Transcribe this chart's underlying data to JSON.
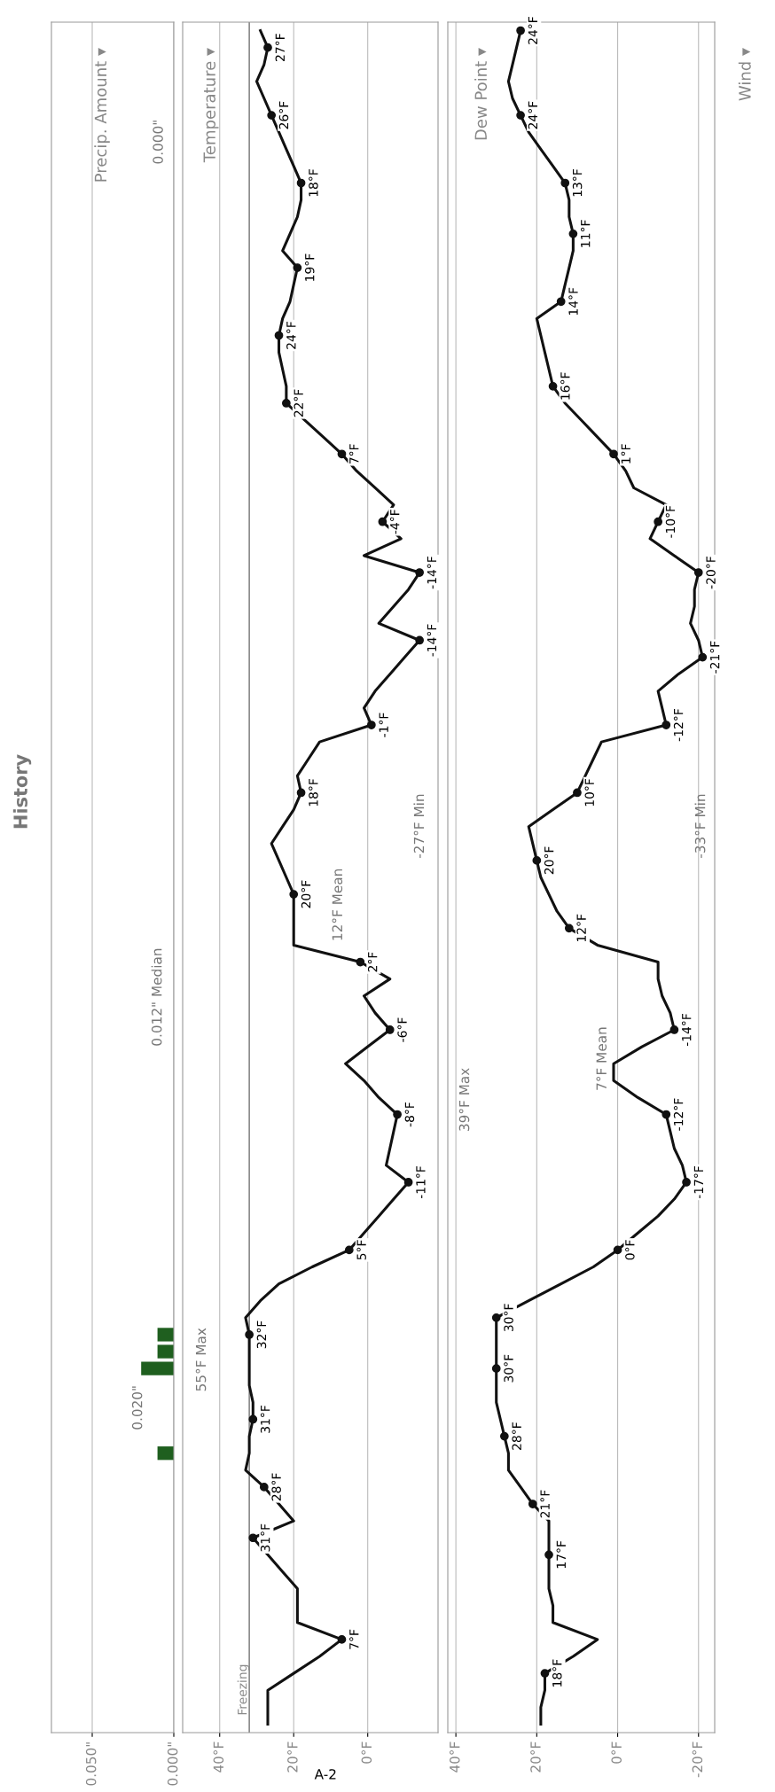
{
  "chart_data": [
    {
      "type": "other",
      "title": "History"
    },
    {
      "type": "bar",
      "title": "Precip. Amount ▾",
      "orientation": "horizontal",
      "categories": [
        null,
        null,
        null,
        null,
        null,
        null,
        null,
        null,
        null,
        null,
        null,
        null,
        null,
        null,
        null,
        null,
        null,
        null,
        null,
        null,
        null,
        null,
        null,
        null,
        null,
        null,
        null,
        null,
        null,
        null,
        null,
        null,
        null,
        null,
        null,
        null,
        null,
        null,
        null,
        null,
        null,
        null,
        null,
        null,
        null,
        null,
        null,
        null,
        null,
        null,
        null,
        null,
        null,
        null,
        null,
        null,
        null,
        null,
        null,
        null,
        null,
        null,
        null,
        null,
        null,
        null,
        null,
        null,
        null,
        null,
        null,
        null,
        null,
        null,
        null,
        null,
        null,
        null,
        null,
        null,
        null,
        null,
        null,
        null,
        null,
        null,
        null,
        null,
        null,
        null,
        null,
        null,
        null,
        null,
        null,
        null,
        null,
        null,
        null,
        null,
        null
      ],
      "series": [
        {
          "color": "#1f5f1f",
          "values": [
            0,
            0,
            0,
            0,
            0,
            0,
            0,
            0,
            0,
            0,
            0,
            0,
            0,
            0,
            0,
            0,
            0,
            0,
            0,
            0,
            0,
            0,
            0,
            0,
            0,
            0,
            0,
            0,
            0,
            0,
            0,
            0,
            0,
            0,
            0,
            0,
            0,
            0,
            0,
            0,
            0,
            0,
            0,
            0,
            0,
            0,
            0,
            0,
            0,
            0,
            0,
            0,
            0,
            0,
            0,
            0,
            0,
            0,
            0,
            0,
            0,
            0,
            0,
            0,
            0,
            0,
            0,
            0,
            0,
            0,
            0,
            0,
            0,
            0,
            0,
            0,
            0,
            0.01,
            0.01,
            0.02,
            0,
            0,
            0,
            0,
            0.01,
            0,
            0,
            0,
            0,
            0,
            0,
            0,
            0,
            0,
            0,
            0,
            0,
            0,
            0,
            0,
            0
          ]
        }
      ],
      "xlim": [
        0.075,
        0
      ],
      "xticks": [
        {
          "value": 0.05,
          "label": "0.050\""
        },
        {
          "value": 0,
          "label": "0.000\""
        }
      ],
      "tick_labels": "x",
      "grid": "x",
      "annotations": [
        "0.012\" Median",
        "0.000\"",
        "0.020\""
      ]
    },
    {
      "type": "line",
      "title": "Temperature ▾",
      "orientation": "horizontal",
      "categories": [
        null,
        null,
        null,
        null,
        null,
        null,
        null,
        null,
        null,
        null,
        null,
        null,
        null,
        null,
        null,
        null,
        null,
        null,
        null,
        null,
        null,
        null,
        null,
        null,
        null,
        null,
        null,
        null,
        null,
        null,
        null,
        null,
        null,
        null,
        null,
        null,
        null,
        null,
        null,
        null,
        null,
        null,
        null,
        null,
        null,
        null,
        null,
        null,
        null,
        null,
        null,
        null,
        null,
        null,
        null,
        null,
        null,
        null,
        null,
        null,
        null,
        null,
        null,
        null,
        null,
        null,
        null,
        null,
        null,
        null,
        null,
        null,
        null,
        null,
        null,
        null,
        null,
        null,
        null,
        null,
        null,
        null,
        null,
        null,
        null,
        null,
        null,
        null,
        null,
        null,
        null,
        null,
        null,
        null,
        null,
        null,
        null,
        null,
        null,
        null,
        null
      ],
      "series": [
        {
          "color": "#111111",
          "values": [
            29,
            27,
            28,
            30,
            28,
            26,
            24,
            22,
            20,
            18,
            18,
            19,
            21,
            23,
            19,
            20,
            21,
            23,
            24,
            24,
            23,
            22,
            22,
            17,
            12,
            7,
            3,
            -2,
            -7,
            -4,
            -9,
            1,
            -14,
            -11,
            -7,
            -3,
            -14,
            -10,
            -6,
            -2,
            1,
            -1,
            13,
            16,
            19,
            18,
            20,
            23,
            26,
            24,
            22,
            20,
            20,
            20,
            20,
            2,
            -6,
            1,
            -2,
            -6,
            0,
            6,
            1,
            -3,
            -8,
            -7,
            -6,
            -5,
            -11,
            -7,
            -3,
            1,
            5,
            15,
            24,
            29,
            33,
            32,
            32,
            32,
            32,
            31,
            31,
            32,
            32,
            33,
            28,
            24,
            20,
            31,
            27,
            23,
            19,
            19,
            19,
            7,
            13,
            20,
            27,
            27,
            27
          ]
        },
        {
          "type": "scatter",
          "marker": "circle",
          "color": "#111111",
          "values": [
            null,
            27,
            null,
            null,
            null,
            26,
            null,
            null,
            null,
            18,
            null,
            null,
            null,
            null,
            19,
            null,
            null,
            null,
            24,
            null,
            null,
            null,
            22,
            null,
            null,
            7,
            null,
            null,
            null,
            -4,
            null,
            null,
            -14,
            null,
            null,
            null,
            -14,
            null,
            null,
            null,
            null,
            -1,
            null,
            null,
            null,
            18,
            null,
            null,
            null,
            null,
            null,
            20,
            null,
            null,
            null,
            2,
            null,
            null,
            null,
            -6,
            null,
            null,
            null,
            null,
            -8,
            null,
            null,
            null,
            -11,
            null,
            null,
            null,
            5,
            null,
            null,
            null,
            null,
            32,
            null,
            null,
            null,
            null,
            31,
            null,
            null,
            null,
            28,
            null,
            null,
            31,
            null,
            null,
            null,
            null,
            null,
            7,
            null,
            null,
            null,
            null,
            null
          ],
          "value_labels": [
            null,
            "27°F",
            null,
            null,
            null,
            "26°F",
            null,
            null,
            null,
            "18°F",
            null,
            null,
            null,
            null,
            "19°F",
            null,
            null,
            null,
            "24°F",
            null,
            null,
            null,
            "22°F",
            null,
            null,
            "7°F",
            null,
            null,
            null,
            "-4°F",
            null,
            null,
            "-14°F",
            null,
            null,
            null,
            "-14°F",
            null,
            null,
            null,
            null,
            "-1°F",
            null,
            null,
            null,
            "18°F",
            null,
            null,
            null,
            null,
            null,
            "20°F",
            null,
            null,
            null,
            "2°F",
            null,
            null,
            null,
            "-6°F",
            null,
            null,
            null,
            null,
            "-8°F",
            null,
            null,
            null,
            "-11°F",
            null,
            null,
            null,
            "5°F",
            null,
            null,
            null,
            null,
            "32°F",
            null,
            null,
            null,
            null,
            "31°F",
            null,
            null,
            null,
            "28°F",
            null,
            null,
            "31°F",
            null,
            null,
            null,
            null,
            null,
            "7°F",
            null,
            null,
            null,
            null,
            null
          ]
        }
      ],
      "xlim": [
        50,
        -19
      ],
      "xticks": [
        {
          "value": 40,
          "label": "40°F"
        },
        {
          "value": 20,
          "label": "20°F"
        },
        {
          "value": 0,
          "label": "0°F"
        }
      ],
      "tick_labels": "x",
      "grid": "x",
      "line_style": "solid",
      "ref_lines": [
        {
          "axis": "x",
          "value": 32,
          "label": "Freezing",
          "color": "#8a8a8a"
        }
      ],
      "annotations": [
        "55°F Max",
        "12°F Mean",
        "-27°F Min",
        "A-2"
      ]
    },
    {
      "type": "line",
      "title": "Dew Point ▾",
      "orientation": "horizontal",
      "categories": [
        null,
        null,
        null,
        null,
        null,
        null,
        null,
        null,
        null,
        null,
        null,
        null,
        null,
        null,
        null,
        null,
        null,
        null,
        null,
        null,
        null,
        null,
        null,
        null,
        null,
        null,
        null,
        null,
        null,
        null,
        null,
        null,
        null,
        null,
        null,
        null,
        null,
        null,
        null,
        null,
        null,
        null,
        null,
        null,
        null,
        null,
        null,
        null,
        null,
        null,
        null,
        null,
        null,
        null,
        null,
        null,
        null,
        null,
        null,
        null,
        null,
        null,
        null,
        null,
        null,
        null,
        null,
        null,
        null,
        null,
        null,
        null,
        null,
        null,
        null,
        null,
        null,
        null,
        null,
        null,
        null,
        null,
        null,
        null,
        null,
        null,
        null,
        null,
        null,
        null,
        null,
        null,
        null,
        null,
        null,
        null,
        null,
        null,
        null,
        null,
        null
      ],
      "series": [
        {
          "color": "#111111",
          "values": [
            24,
            25,
            26,
            27,
            26,
            24,
            22,
            19,
            16,
            13,
            12,
            12,
            11,
            11,
            12,
            13,
            14,
            20,
            19,
            18,
            17,
            16,
            13,
            9,
            5,
            1,
            -2,
            -4,
            -12,
            -10,
            -8,
            -14,
            -20,
            -19,
            -19,
            -18,
            -20,
            -21,
            -15,
            -10,
            -11,
            -12,
            4,
            6,
            8,
            10,
            16,
            22,
            21,
            20,
            19,
            17,
            15,
            12,
            5,
            -10,
            -10,
            -11,
            -13,
            -14,
            -6,
            1,
            1,
            -5,
            -12,
            -13,
            -14,
            -16,
            -17,
            -14,
            -10,
            -5,
            0,
            6,
            14,
            22,
            30,
            30,
            30,
            30,
            30,
            30,
            29,
            28,
            27,
            27,
            24,
            21,
            17,
            17,
            17,
            17,
            17,
            16,
            16,
            5,
            11,
            18,
            18,
            19,
            19
          ]
        },
        {
          "type": "scatter",
          "marker": "circle",
          "color": "#111111",
          "values": [
            24,
            null,
            null,
            null,
            null,
            24,
            null,
            null,
            null,
            13,
            null,
            null,
            11,
            null,
            null,
            null,
            14,
            null,
            null,
            null,
            null,
            16,
            null,
            null,
            null,
            1,
            null,
            null,
            null,
            -10,
            null,
            null,
            -20,
            null,
            null,
            null,
            null,
            -21,
            null,
            null,
            null,
            -12,
            null,
            null,
            null,
            10,
            null,
            null,
            null,
            20,
            null,
            null,
            null,
            12,
            null,
            null,
            null,
            null,
            null,
            -14,
            null,
            null,
            null,
            null,
            -12,
            null,
            null,
            null,
            -17,
            null,
            null,
            null,
            0,
            null,
            null,
            null,
            30,
            null,
            null,
            30,
            null,
            null,
            null,
            28,
            null,
            null,
            null,
            21,
            null,
            null,
            17,
            null,
            null,
            null,
            null,
            null,
            null,
            18,
            null,
            null,
            null
          ],
          "value_labels": [
            "24°F",
            null,
            null,
            null,
            null,
            "24°F",
            null,
            null,
            null,
            "13°F",
            null,
            null,
            "11°F",
            null,
            null,
            null,
            "14°F",
            null,
            null,
            null,
            null,
            "16°F",
            null,
            null,
            null,
            "1°F",
            null,
            null,
            null,
            "-10°F",
            null,
            null,
            "-20°F",
            null,
            null,
            null,
            null,
            "-21°F",
            null,
            null,
            null,
            "-12°F",
            null,
            null,
            null,
            "10°F",
            null,
            null,
            null,
            "20°F",
            null,
            null,
            null,
            "12°F",
            null,
            null,
            null,
            null,
            null,
            "-14°F",
            null,
            null,
            null,
            null,
            "-12°F",
            null,
            null,
            null,
            "-17°F",
            null,
            null,
            null,
            "0°F",
            null,
            null,
            null,
            "30°F",
            null,
            null,
            "30°F",
            null,
            null,
            null,
            "28°F",
            null,
            null,
            null,
            "21°F",
            null,
            null,
            "17°F",
            null,
            null,
            null,
            null,
            null,
            null,
            "18°F",
            null,
            null,
            null
          ]
        }
      ],
      "xlim": [
        42,
        -24
      ],
      "xticks": [
        {
          "value": 40,
          "label": "40°F"
        },
        {
          "value": 20,
          "label": "20°F"
        },
        {
          "value": 0,
          "label": "0°F"
        },
        {
          "value": -20,
          "label": "-20°F"
        }
      ],
      "tick_labels": "x",
      "grid": "x",
      "line_style": "solid",
      "annotations": [
        "39°F Max",
        "7°F Mean",
        "-33°F Min"
      ]
    },
    {
      "type": "other",
      "title": "Wind ▾"
    }
  ]
}
